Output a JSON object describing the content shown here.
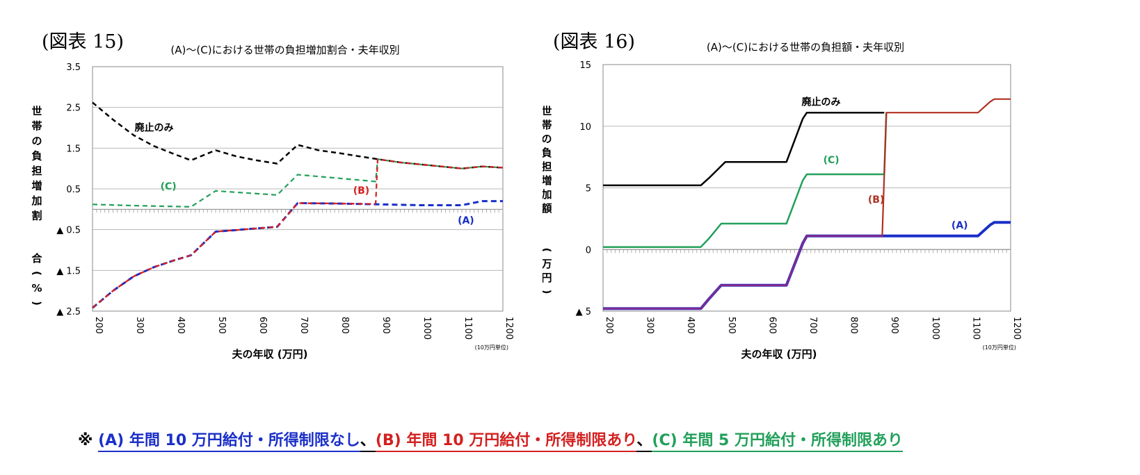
{
  "figure_labels": [
    "(図表 15)",
    "(図表 16)"
  ],
  "footnote": {
    "mark": "※",
    "a": "(A) 年間 10 万円給付・所得制限なし",
    "sep1": "、",
    "b": "(B) 年間 10 万円給付・所得制限あり",
    "sep2": "、",
    "c": "(C) 年間 5 万円給付・所得制限あり"
  },
  "colors": {
    "black": "#000000",
    "green": "#22a05a",
    "red": "#d42020",
    "blue": "#1a2fc8",
    "darkred": "#b03020",
    "purple": "#8a2a8a",
    "grid": "#b8b8b8"
  },
  "chart_data": [
    {
      "type": "line",
      "title": "(A)～(C)における世帯の負担増加割合・夫年収別",
      "xlabel": "夫の年収 (万円)",
      "ylabel": "世帯の負担増加割合 (%)",
      "x_note": "(10万円単位)",
      "xlim": [
        200,
        1200
      ],
      "ylim": [
        -2.5,
        3.5
      ],
      "x_ticks": [
        "200",
        "300",
        "400",
        "500",
        "600",
        "700",
        "800",
        "900",
        "1000",
        "1100",
        "1200"
      ],
      "y_ticks": [
        {
          "v": 3.5,
          "label": "3.5"
        },
        {
          "v": 2.5,
          "label": "2.5"
        },
        {
          "v": 1.5,
          "label": "1.5"
        },
        {
          "v": 0.5,
          "label": "0.5"
        },
        {
          "v": -0.5,
          "label": "▲ 0.5"
        },
        {
          "v": -1.5,
          "label": "▲ 1.5"
        },
        {
          "v": -2.5,
          "label": "▲ 2.5"
        }
      ],
      "series": [
        {
          "name": "廃止のみ",
          "color": "#000000",
          "dash": "7,5",
          "width": 2.5,
          "points": [
            [
              200,
              2.62
            ],
            [
              250,
              2.2
            ],
            [
              300,
              1.82
            ],
            [
              350,
              1.55
            ],
            [
              400,
              1.35
            ],
            [
              440,
              1.2
            ],
            [
              500,
              1.45
            ],
            [
              550,
              1.3
            ],
            [
              600,
              1.2
            ],
            [
              650,
              1.12
            ],
            [
              700,
              1.58
            ],
            [
              750,
              1.45
            ],
            [
              800,
              1.38
            ],
            [
              850,
              1.3
            ],
            [
              895,
              1.23
            ],
            [
              950,
              1.15
            ],
            [
              1000,
              1.1
            ],
            [
              1050,
              1.05
            ],
            [
              1100,
              1.0
            ],
            [
              1150,
              1.05
            ],
            [
              1200,
              1.02
            ]
          ]
        },
        {
          "name": "(C)",
          "color": "#22a05a",
          "dash": "7,5",
          "width": 2.2,
          "points": [
            [
              200,
              0.12
            ],
            [
              300,
              0.09
            ],
            [
              440,
              0.06
            ],
            [
              500,
              0.45
            ],
            [
              650,
              0.35
            ],
            [
              700,
              0.85
            ],
            [
              800,
              0.76
            ],
            [
              890,
              0.68
            ],
            [
              895,
              1.23
            ],
            [
              950,
              1.15
            ],
            [
              1000,
              1.1
            ],
            [
              1050,
              1.05
            ],
            [
              1100,
              1.0
            ],
            [
              1150,
              1.05
            ],
            [
              1200,
              1.02
            ]
          ]
        },
        {
          "name": "(B)",
          "color": "#d42020",
          "dash": "7,5",
          "width": 2.2,
          "points": [
            [
              200,
              -2.42
            ],
            [
              250,
              -2.0
            ],
            [
              300,
              -1.65
            ],
            [
              350,
              -1.42
            ],
            [
              400,
              -1.25
            ],
            [
              440,
              -1.13
            ],
            [
              500,
              -0.55
            ],
            [
              600,
              -0.47
            ],
            [
              650,
              -0.43
            ],
            [
              700,
              0.15
            ],
            [
              800,
              0.14
            ],
            [
              890,
              0.13
            ],
            [
              895,
              1.23
            ],
            [
              950,
              1.15
            ],
            [
              1000,
              1.1
            ],
            [
              1050,
              1.05
            ],
            [
              1100,
              1.0
            ],
            [
              1150,
              1.05
            ],
            [
              1200,
              1.02
            ]
          ]
        },
        {
          "name": "(A)",
          "color": "#1a2fc8",
          "dash": "8,5",
          "width": 3,
          "points": [
            [
              200,
              -2.42
            ],
            [
              250,
              -2.0
            ],
            [
              300,
              -1.65
            ],
            [
              350,
              -1.42
            ],
            [
              400,
              -1.25
            ],
            [
              440,
              -1.13
            ],
            [
              500,
              -0.55
            ],
            [
              600,
              -0.47
            ],
            [
              650,
              -0.43
            ],
            [
              700,
              0.15
            ],
            [
              800,
              0.14
            ],
            [
              900,
              0.12
            ],
            [
              1000,
              0.1
            ],
            [
              1100,
              0.1
            ],
            [
              1150,
              0.2
            ],
            [
              1200,
              0.2
            ]
          ]
        },
        {
          "name": "(B)",
          "color": "#d42020",
          "dash": "7,5",
          "width": 2.2,
          "points": [
            [
              200,
              -2.42
            ],
            [
              250,
              -2.0
            ],
            [
              300,
              -1.65
            ],
            [
              350,
              -1.42
            ],
            [
              400,
              -1.25
            ],
            [
              440,
              -1.13
            ],
            [
              500,
              -0.55
            ],
            [
              600,
              -0.47
            ],
            [
              650,
              -0.43
            ],
            [
              700,
              0.15
            ],
            [
              800,
              0.14
            ],
            [
              890,
              0.13
            ]
          ]
        }
      ],
      "labels": [
        {
          "text": "廃止のみ",
          "x": 350,
          "y": 1.92,
          "color": "#000000"
        },
        {
          "text": "(C)",
          "x": 385,
          "y": 0.48,
          "color": "#22a05a"
        },
        {
          "text": "(B)",
          "x": 855,
          "y": 0.38,
          "color": "#d42020"
        },
        {
          "text": "(A)",
          "x": 1110,
          "y": -0.35,
          "color": "#1a2fc8"
        }
      ]
    },
    {
      "type": "line",
      "title": "(A)～(C)における世帯の負担額・夫年収別",
      "xlabel": "夫の年収 (万円)",
      "ylabel": "世帯の負担増加額 (万円)",
      "x_note": "(10万円単位)",
      "xlim": [
        200,
        1200
      ],
      "ylim": [
        -5,
        15
      ],
      "x_ticks": [
        "200",
        "300",
        "400",
        "500",
        "600",
        "700",
        "800",
        "900",
        "1000",
        "1100",
        "1200"
      ],
      "y_ticks": [
        {
          "v": 15,
          "label": "15"
        },
        {
          "v": 10,
          "label": "10"
        },
        {
          "v": 5,
          "label": "5"
        },
        {
          "v": 0,
          "label": "0"
        },
        {
          "v": -5,
          "label": "▲ 5"
        }
      ],
      "series": [
        {
          "name": "廃止のみ",
          "color": "#000000",
          "dash": "",
          "width": 2.5,
          "points": [
            [
              200,
              5.2
            ],
            [
              440,
              5.2
            ],
            [
              460,
              5.8
            ],
            [
              500,
              7.1
            ],
            [
              650,
              7.1
            ],
            [
              690,
              10.6
            ],
            [
              700,
              11.1
            ],
            [
              890,
              11.1
            ]
          ]
        },
        {
          "name": "(C)",
          "color": "#22a05a",
          "dash": "",
          "width": 2.5,
          "points": [
            [
              200,
              0.2
            ],
            [
              440,
              0.2
            ],
            [
              460,
              0.9
            ],
            [
              490,
              2.1
            ],
            [
              650,
              2.1
            ],
            [
              690,
              5.6
            ],
            [
              700,
              6.1
            ],
            [
              890,
              6.1
            ],
            [
              895,
              11.1
            ]
          ]
        },
        {
          "name": "(A)",
          "color": "#1a2fc8",
          "dash": "",
          "width": 4,
          "points": [
            [
              200,
              -4.8
            ],
            [
              440,
              -4.8
            ],
            [
              460,
              -4.0
            ],
            [
              490,
              -2.9
            ],
            [
              650,
              -2.9
            ],
            [
              690,
              0.5
            ],
            [
              700,
              1.1
            ],
            [
              1120,
              1.1
            ],
            [
              1150,
              2.0
            ],
            [
              1160,
              2.2
            ],
            [
              1200,
              2.2
            ]
          ]
        },
        {
          "name": "(B)",
          "color": "#b03020",
          "dash": "",
          "width": 2.2,
          "points": [
            [
              690,
              0.5
            ],
            [
              700,
              1.1
            ],
            [
              885,
              1.1
            ],
            [
              895,
              11.1
            ],
            [
              1120,
              11.1
            ],
            [
              1150,
              12.0
            ],
            [
              1160,
              12.2
            ],
            [
              1200,
              12.2
            ]
          ]
        },
        {
          "name": "(A)/(B)",
          "color": "#8a2a8a",
          "dash": "",
          "width": 2.5,
          "points": [
            [
              200,
              -4.8
            ],
            [
              440,
              -4.8
            ],
            [
              460,
              -4.0
            ],
            [
              490,
              -2.9
            ],
            [
              650,
              -2.9
            ],
            [
              690,
              0.5
            ],
            [
              700,
              1.1
            ],
            [
              885,
              1.1
            ]
          ]
        }
      ],
      "labels": [
        {
          "text": "廃止のみ",
          "x": 735,
          "y": 11.7,
          "color": "#000000"
        },
        {
          "text": "(C)",
          "x": 760,
          "y": 7.0,
          "color": "#22a05a"
        },
        {
          "text": "(B)",
          "x": 870,
          "y": 3.8,
          "color": "#b03020"
        },
        {
          "text": "(A)",
          "x": 1075,
          "y": 1.7,
          "color": "#1a2fc8"
        }
      ]
    }
  ]
}
